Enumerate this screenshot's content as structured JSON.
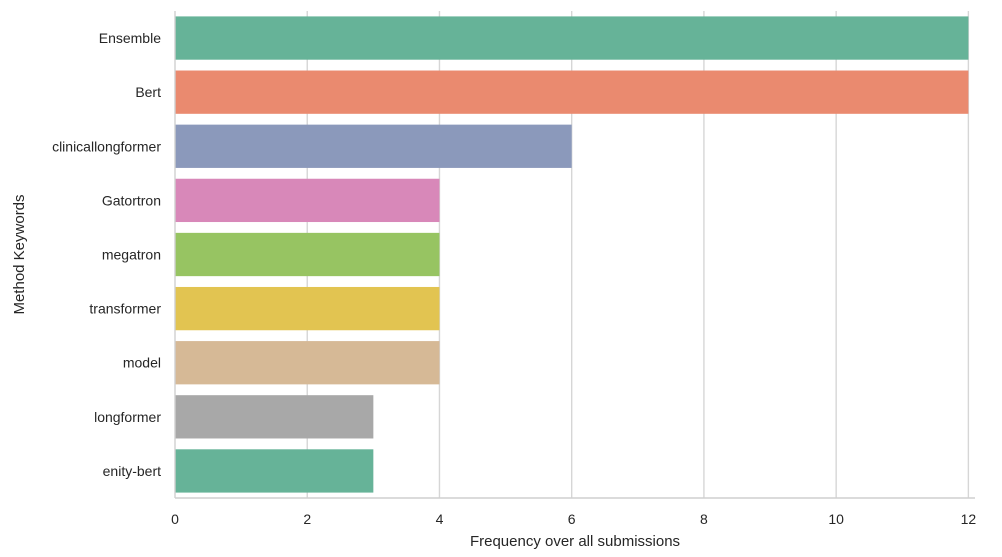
{
  "chart_data": {
    "type": "bar",
    "orientation": "horizontal",
    "title": "",
    "xlabel": "Frequency over all submissions",
    "ylabel": "Method Keywords",
    "categories": [
      "Ensemble",
      "Bert",
      "clinicallongformer",
      "Gatortron",
      "megatron",
      "transformer",
      "model",
      "longformer",
      "enity-bert"
    ],
    "values": [
      12,
      12,
      6,
      4,
      4,
      4,
      4,
      3,
      3
    ],
    "colors": [
      "#66b398",
      "#ea8a6f",
      "#8b99bb",
      "#d888b9",
      "#97c462",
      "#e2c451",
      "#d6b996",
      "#a8a8a8",
      "#66b398"
    ],
    "xlim": [
      0,
      12.1
    ],
    "xticks": [
      0,
      2,
      4,
      6,
      8,
      10,
      12
    ],
    "grid": true,
    "grid_axis": "x",
    "legend": "none"
  }
}
